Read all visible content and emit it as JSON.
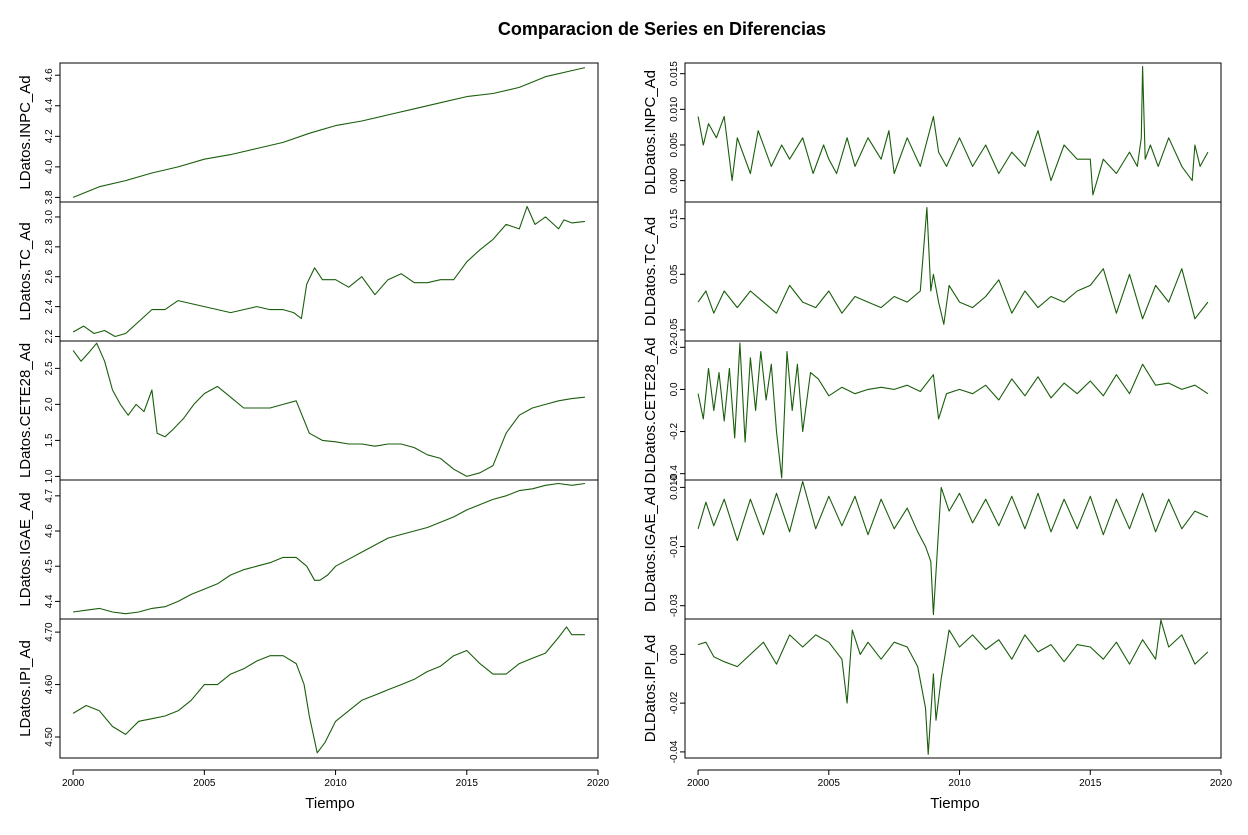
{
  "title": "Comparacion de Series en Diferencias",
  "colors": {
    "series": "#1a5e0c",
    "frame": "#000000",
    "background": "#ffffff"
  },
  "chart_data": [
    {
      "type": "line",
      "column": "left",
      "ylabel": "LDatos.INPC_Ad",
      "yticks": [
        3.8,
        4.0,
        4.2,
        4.4,
        4.6
      ],
      "yticklabels": [
        "3.8",
        "4.0",
        "4.2",
        "4.4",
        "4.6"
      ],
      "ylim": [
        3.77,
        4.68
      ],
      "x": [
        2000.0,
        2001.0,
        2002.0,
        2003.0,
        2004.0,
        2005.0,
        2006.0,
        2007.0,
        2008.0,
        2009.0,
        2010.0,
        2011.0,
        2012.0,
        2013.0,
        2014.0,
        2015.0,
        2016.0,
        2017.0,
        2018.0,
        2019.0,
        2019.5
      ],
      "y": [
        3.8,
        3.87,
        3.91,
        3.96,
        4.0,
        4.05,
        4.08,
        4.12,
        4.16,
        4.22,
        4.27,
        4.3,
        4.34,
        4.38,
        4.42,
        4.46,
        4.48,
        4.52,
        4.59,
        4.63,
        4.65
      ]
    },
    {
      "type": "line",
      "column": "right",
      "ylabel": "DLDatos.INPC_Ad",
      "yticks": [
        0.0,
        0.005,
        0.01,
        0.015
      ],
      "yticklabels": [
        "0.000",
        "0.005",
        "0.010",
        "0.015"
      ],
      "ylim": [
        -0.003,
        0.0165
      ],
      "x": [
        2000.0,
        2000.2,
        2000.4,
        2000.7,
        2001.0,
        2001.3,
        2001.5,
        2002.0,
        2002.3,
        2002.8,
        2003.2,
        2003.5,
        2004.0,
        2004.4,
        2004.8,
        2005.0,
        2005.3,
        2005.7,
        2006.0,
        2006.5,
        2007.0,
        2007.3,
        2007.5,
        2008.0,
        2008.5,
        2009.0,
        2009.2,
        2009.5,
        2010.0,
        2010.5,
        2011.0,
        2011.5,
        2012.0,
        2012.5,
        2013.0,
        2013.5,
        2014.0,
        2014.5,
        2015.0,
        2015.1,
        2015.5,
        2016.0,
        2016.5,
        2016.8,
        2016.95,
        2017.0,
        2017.1,
        2017.3,
        2017.6,
        2018.0,
        2018.5,
        2018.9,
        2019.0,
        2019.2,
        2019.5
      ],
      "y": [
        0.009,
        0.005,
        0.008,
        0.006,
        0.009,
        0.0,
        0.006,
        0.001,
        0.007,
        0.002,
        0.005,
        0.003,
        0.006,
        0.001,
        0.005,
        0.003,
        0.001,
        0.006,
        0.002,
        0.006,
        0.003,
        0.007,
        0.001,
        0.006,
        0.002,
        0.009,
        0.004,
        0.002,
        0.006,
        0.002,
        0.005,
        0.001,
        0.004,
        0.002,
        0.007,
        0.0,
        0.005,
        0.003,
        0.003,
        -0.002,
        0.003,
        0.001,
        0.004,
        0.002,
        0.006,
        0.016,
        0.003,
        0.005,
        0.002,
        0.006,
        0.002,
        0.0,
        0.005,
        0.002,
        0.004
      ]
    },
    {
      "type": "line",
      "column": "left",
      "ylabel": "LDatos.TC_Ad",
      "yticks": [
        2.2,
        2.4,
        2.6,
        2.8,
        3.0
      ],
      "yticklabels": [
        "2.2",
        "2.4",
        "2.6",
        "2.8",
        "3.0"
      ],
      "ylim": [
        2.17,
        3.1
      ],
      "x": [
        2000.0,
        2000.4,
        2000.8,
        2001.2,
        2001.6,
        2002.0,
        2002.5,
        2003.0,
        2003.5,
        2004.0,
        2004.5,
        2005.0,
        2005.5,
        2006.0,
        2006.5,
        2007.0,
        2007.5,
        2008.0,
        2008.4,
        2008.7,
        2008.9,
        2009.2,
        2009.5,
        2010.0,
        2010.5,
        2011.0,
        2011.5,
        2012.0,
        2012.5,
        2013.0,
        2013.5,
        2014.0,
        2014.5,
        2015.0,
        2015.5,
        2016.0,
        2016.5,
        2017.0,
        2017.3,
        2017.6,
        2018.0,
        2018.5,
        2018.7,
        2019.0,
        2019.5
      ],
      "y": [
        2.23,
        2.27,
        2.22,
        2.24,
        2.2,
        2.22,
        2.3,
        2.38,
        2.38,
        2.44,
        2.42,
        2.4,
        2.38,
        2.36,
        2.38,
        2.4,
        2.38,
        2.38,
        2.36,
        2.32,
        2.55,
        2.66,
        2.58,
        2.58,
        2.53,
        2.6,
        2.48,
        2.58,
        2.62,
        2.56,
        2.56,
        2.58,
        2.58,
        2.7,
        2.78,
        2.85,
        2.95,
        2.92,
        3.07,
        2.95,
        3.0,
        2.92,
        2.98,
        2.96,
        2.97
      ]
    },
    {
      "type": "line",
      "column": "right",
      "ylabel": "DLDatos.TC_Ad",
      "yticks": [
        -0.05,
        0.05,
        0.15
      ],
      "yticklabels": [
        "-0.05",
        "0.05",
        "0.15"
      ],
      "ylim": [
        -0.07,
        0.18
      ],
      "x": [
        2000.0,
        2000.3,
        2000.6,
        2001.0,
        2001.5,
        2002.0,
        2002.5,
        2003.0,
        2003.5,
        2004.0,
        2004.5,
        2005.0,
        2005.5,
        2006.0,
        2006.5,
        2007.0,
        2007.5,
        2008.0,
        2008.5,
        2008.75,
        2008.9,
        2009.0,
        2009.2,
        2009.4,
        2009.6,
        2010.0,
        2010.5,
        2011.0,
        2011.5,
        2012.0,
        2012.5,
        2013.0,
        2013.5,
        2014.0,
        2014.5,
        2015.0,
        2015.5,
        2016.0,
        2016.5,
        2017.0,
        2017.5,
        2018.0,
        2018.5,
        2019.0,
        2019.5
      ],
      "y": [
        0.0,
        0.02,
        -0.02,
        0.02,
        -0.01,
        0.02,
        0.0,
        -0.02,
        0.03,
        0.0,
        -0.01,
        0.02,
        -0.02,
        0.01,
        0.0,
        -0.01,
        0.01,
        0.0,
        0.02,
        0.17,
        0.02,
        0.05,
        0.0,
        -0.04,
        0.03,
        0.0,
        -0.01,
        0.01,
        0.04,
        -0.02,
        0.02,
        -0.01,
        0.01,
        0.0,
        0.02,
        0.03,
        0.06,
        -0.02,
        0.05,
        -0.03,
        0.03,
        0.0,
        0.06,
        -0.03,
        0.0
      ]
    },
    {
      "type": "line",
      "column": "left",
      "ylabel": "LDatos.CETE28_Ad",
      "yticks": [
        1.0,
        1.5,
        2.0,
        2.5
      ],
      "yticklabels": [
        "1.0",
        "1.5",
        "2.0",
        "2.5"
      ],
      "ylim": [
        0.95,
        2.88
      ],
      "x": [
        2000.0,
        2000.3,
        2000.6,
        2000.9,
        2001.2,
        2001.5,
        2001.8,
        2002.1,
        2002.4,
        2002.7,
        2003.0,
        2003.2,
        2003.5,
        2003.8,
        2004.2,
        2004.6,
        2005.0,
        2005.5,
        2006.0,
        2006.5,
        2007.0,
        2007.5,
        2008.0,
        2008.5,
        2009.0,
        2009.5,
        2010.0,
        2010.5,
        2011.0,
        2011.5,
        2012.0,
        2012.5,
        2013.0,
        2013.5,
        2014.0,
        2014.5,
        2015.0,
        2015.5,
        2016.0,
        2016.5,
        2017.0,
        2017.5,
        2018.0,
        2018.5,
        2019.0,
        2019.5
      ],
      "y": [
        2.75,
        2.6,
        2.72,
        2.85,
        2.6,
        2.2,
        2.0,
        1.85,
        2.0,
        1.9,
        2.2,
        1.6,
        1.55,
        1.65,
        1.8,
        2.0,
        2.15,
        2.25,
        2.1,
        1.95,
        1.95,
        1.95,
        2.0,
        2.05,
        1.6,
        1.5,
        1.48,
        1.45,
        1.45,
        1.42,
        1.45,
        1.45,
        1.4,
        1.3,
        1.25,
        1.1,
        1.0,
        1.05,
        1.15,
        1.6,
        1.85,
        1.95,
        2.0,
        2.05,
        2.08,
        2.1
      ]
    },
    {
      "type": "line",
      "column": "right",
      "ylabel": "DLDatos.CETE28_Ad",
      "yticks": [
        -0.4,
        -0.2,
        0.0,
        0.2
      ],
      "yticklabels": [
        "-0.4",
        "-0.2",
        "0.0",
        "0.2"
      ],
      "ylim": [
        -0.43,
        0.23
      ],
      "x": [
        2000.0,
        2000.2,
        2000.4,
        2000.6,
        2000.8,
        2001.0,
        2001.2,
        2001.4,
        2001.6,
        2001.8,
        2002.0,
        2002.2,
        2002.4,
        2002.6,
        2002.8,
        2003.0,
        2003.2,
        2003.4,
        2003.6,
        2003.8,
        2004.0,
        2004.3,
        2004.6,
        2005.0,
        2005.5,
        2006.0,
        2006.5,
        2007.0,
        2007.5,
        2008.0,
        2008.5,
        2009.0,
        2009.2,
        2009.5,
        2010.0,
        2010.5,
        2011.0,
        2011.5,
        2012.0,
        2012.5,
        2013.0,
        2013.5,
        2014.0,
        2014.5,
        2015.0,
        2015.5,
        2016.0,
        2016.5,
        2017.0,
        2017.5,
        2018.0,
        2018.5,
        2019.0,
        2019.5
      ],
      "y": [
        -0.02,
        -0.14,
        0.1,
        -0.1,
        0.08,
        -0.15,
        0.1,
        -0.23,
        0.22,
        -0.25,
        0.15,
        -0.1,
        0.18,
        -0.05,
        0.12,
        -0.2,
        -0.42,
        0.18,
        -0.1,
        0.12,
        -0.2,
        0.08,
        0.05,
        -0.03,
        0.01,
        -0.02,
        0.0,
        0.01,
        0.0,
        0.02,
        -0.01,
        0.07,
        -0.14,
        -0.02,
        0.0,
        -0.02,
        0.02,
        -0.05,
        0.05,
        -0.03,
        0.06,
        -0.04,
        0.03,
        -0.02,
        0.04,
        -0.03,
        0.07,
        -0.02,
        0.12,
        0.02,
        0.03,
        0.0,
        0.02,
        -0.02
      ]
    },
    {
      "type": "line",
      "column": "left",
      "ylabel": "LDatos.IGAE_Ad",
      "yticks": [
        4.4,
        4.5,
        4.6,
        4.7
      ],
      "yticklabels": [
        "4.4",
        "4.5",
        "4.6",
        "4.7"
      ],
      "ylim": [
        4.35,
        4.745
      ],
      "x": [
        2000.0,
        2000.5,
        2001.0,
        2001.5,
        2002.0,
        2002.5,
        2003.0,
        2003.5,
        2004.0,
        2004.5,
        2005.0,
        2005.5,
        2006.0,
        2006.5,
        2007.0,
        2007.5,
        2008.0,
        2008.5,
        2008.9,
        2009.2,
        2009.4,
        2009.7,
        2010.0,
        2010.5,
        2011.0,
        2011.5,
        2012.0,
        2012.5,
        2013.0,
        2013.5,
        2014.0,
        2014.5,
        2015.0,
        2015.5,
        2016.0,
        2016.5,
        2017.0,
        2017.5,
        2018.0,
        2018.5,
        2019.0,
        2019.5
      ],
      "y": [
        4.37,
        4.375,
        4.38,
        4.37,
        4.365,
        4.37,
        4.38,
        4.385,
        4.4,
        4.42,
        4.435,
        4.45,
        4.475,
        4.49,
        4.5,
        4.51,
        4.525,
        4.525,
        4.5,
        4.46,
        4.46,
        4.475,
        4.5,
        4.52,
        4.54,
        4.56,
        4.58,
        4.59,
        4.6,
        4.61,
        4.625,
        4.64,
        4.66,
        4.675,
        4.69,
        4.7,
        4.715,
        4.72,
        4.73,
        4.735,
        4.73,
        4.735
      ]
    },
    {
      "type": "line",
      "column": "right",
      "ylabel": "DLDatos.IGAE_Ad",
      "yticks": [
        -0.03,
        -0.01,
        0.01
      ],
      "yticklabels": [
        "-0.03",
        "-0.01",
        "0.010"
      ],
      "ylim": [
        -0.0345,
        0.0125
      ],
      "x": [
        2000.0,
        2000.3,
        2000.6,
        2001.0,
        2001.5,
        2002.0,
        2002.5,
        2003.0,
        2003.5,
        2004.0,
        2004.5,
        2005.0,
        2005.5,
        2006.0,
        2006.5,
        2007.0,
        2007.5,
        2008.0,
        2008.4,
        2008.7,
        2008.9,
        2009.0,
        2009.3,
        2009.6,
        2010.0,
        2010.5,
        2011.0,
        2011.5,
        2012.0,
        2012.5,
        2013.0,
        2013.5,
        2014.0,
        2014.5,
        2015.0,
        2015.5,
        2016.0,
        2016.5,
        2017.0,
        2017.5,
        2018.0,
        2018.5,
        2019.0,
        2019.5
      ],
      "y": [
        -0.004,
        0.005,
        -0.003,
        0.006,
        -0.008,
        0.006,
        -0.006,
        0.008,
        -0.005,
        0.012,
        -0.004,
        0.007,
        -0.003,
        0.007,
        -0.006,
        0.006,
        -0.004,
        0.003,
        -0.005,
        -0.01,
        -0.015,
        -0.033,
        0.01,
        0.002,
        0.008,
        -0.002,
        0.006,
        -0.003,
        0.007,
        -0.004,
        0.008,
        -0.005,
        0.006,
        -0.004,
        0.007,
        -0.006,
        0.006,
        -0.004,
        0.008,
        -0.005,
        0.006,
        -0.004,
        0.002,
        0.0
      ]
    },
    {
      "type": "line",
      "column": "left",
      "ylabel": "LDatos.IPI_Ad",
      "yticks": [
        4.5,
        4.6,
        4.7
      ],
      "yticklabels": [
        "4.50",
        "4.60",
        "4.70"
      ],
      "ylim": [
        4.46,
        4.725
      ],
      "x": [
        2000.0,
        2000.5,
        2001.0,
        2001.5,
        2002.0,
        2002.5,
        2003.0,
        2003.5,
        2004.0,
        2004.5,
        2005.0,
        2005.5,
        2006.0,
        2006.5,
        2007.0,
        2007.5,
        2008.0,
        2008.5,
        2008.8,
        2009.0,
        2009.3,
        2009.6,
        2010.0,
        2010.5,
        2011.0,
        2011.5,
        2012.0,
        2012.5,
        2013.0,
        2013.5,
        2014.0,
        2014.5,
        2015.0,
        2015.5,
        2016.0,
        2016.5,
        2017.0,
        2017.5,
        2018.0,
        2018.5,
        2018.8,
        2019.0,
        2019.5
      ],
      "y": [
        4.545,
        4.56,
        4.55,
        4.52,
        4.505,
        4.53,
        4.535,
        4.54,
        4.55,
        4.57,
        4.6,
        4.6,
        4.62,
        4.63,
        4.645,
        4.655,
        4.655,
        4.64,
        4.6,
        4.54,
        4.47,
        4.49,
        4.53,
        4.55,
        4.57,
        4.58,
        4.59,
        4.6,
        4.61,
        4.625,
        4.635,
        4.655,
        4.665,
        4.64,
        4.62,
        4.62,
        4.64,
        4.65,
        4.66,
        4.69,
        4.71,
        4.695,
        4.695
      ]
    },
    {
      "type": "line",
      "column": "right",
      "ylabel": "DLDatos.IPI_Ad",
      "yticks": [
        -0.04,
        -0.02,
        0.0
      ],
      "yticklabels": [
        "-0.04",
        "-0.02",
        "0.00"
      ],
      "ylim": [
        -0.0425,
        0.0145
      ],
      "x": [
        2000.0,
        2000.3,
        2000.6,
        2001.0,
        2001.5,
        2002.0,
        2002.5,
        2003.0,
        2003.5,
        2004.0,
        2004.5,
        2005.0,
        2005.5,
        2005.7,
        2005.9,
        2006.2,
        2006.5,
        2007.0,
        2007.5,
        2008.0,
        2008.4,
        2008.7,
        2008.8,
        2009.0,
        2009.1,
        2009.3,
        2009.6,
        2010.0,
        2010.5,
        2011.0,
        2011.5,
        2012.0,
        2012.5,
        2013.0,
        2013.5,
        2014.0,
        2014.5,
        2015.0,
        2015.5,
        2016.0,
        2016.5,
        2017.0,
        2017.5,
        2017.7,
        2018.0,
        2018.5,
        2019.0,
        2019.5
      ],
      "y": [
        0.004,
        0.005,
        -0.001,
        -0.003,
        -0.005,
        0.0,
        0.005,
        -0.004,
        0.008,
        0.003,
        0.008,
        0.005,
        -0.002,
        -0.02,
        0.01,
        0.0,
        0.005,
        -0.002,
        0.005,
        0.003,
        -0.005,
        -0.022,
        -0.041,
        -0.008,
        -0.027,
        -0.01,
        0.01,
        0.003,
        0.008,
        0.002,
        0.006,
        -0.002,
        0.008,
        0.001,
        0.004,
        -0.003,
        0.004,
        0.003,
        -0.002,
        0.005,
        -0.004,
        0.006,
        -0.002,
        0.014,
        0.003,
        0.008,
        -0.004,
        0.001
      ]
    }
  ],
  "xaxis": {
    "xlim": [
      1999.5,
      2020.0
    ],
    "ticks": [
      2000,
      2005,
      2010,
      2015,
      2020
    ],
    "ticklabels": [
      "2000",
      "2005",
      "2010",
      "2015",
      "2020"
    ],
    "label_left": "Tiempo",
    "label_right": "Tiempo"
  }
}
